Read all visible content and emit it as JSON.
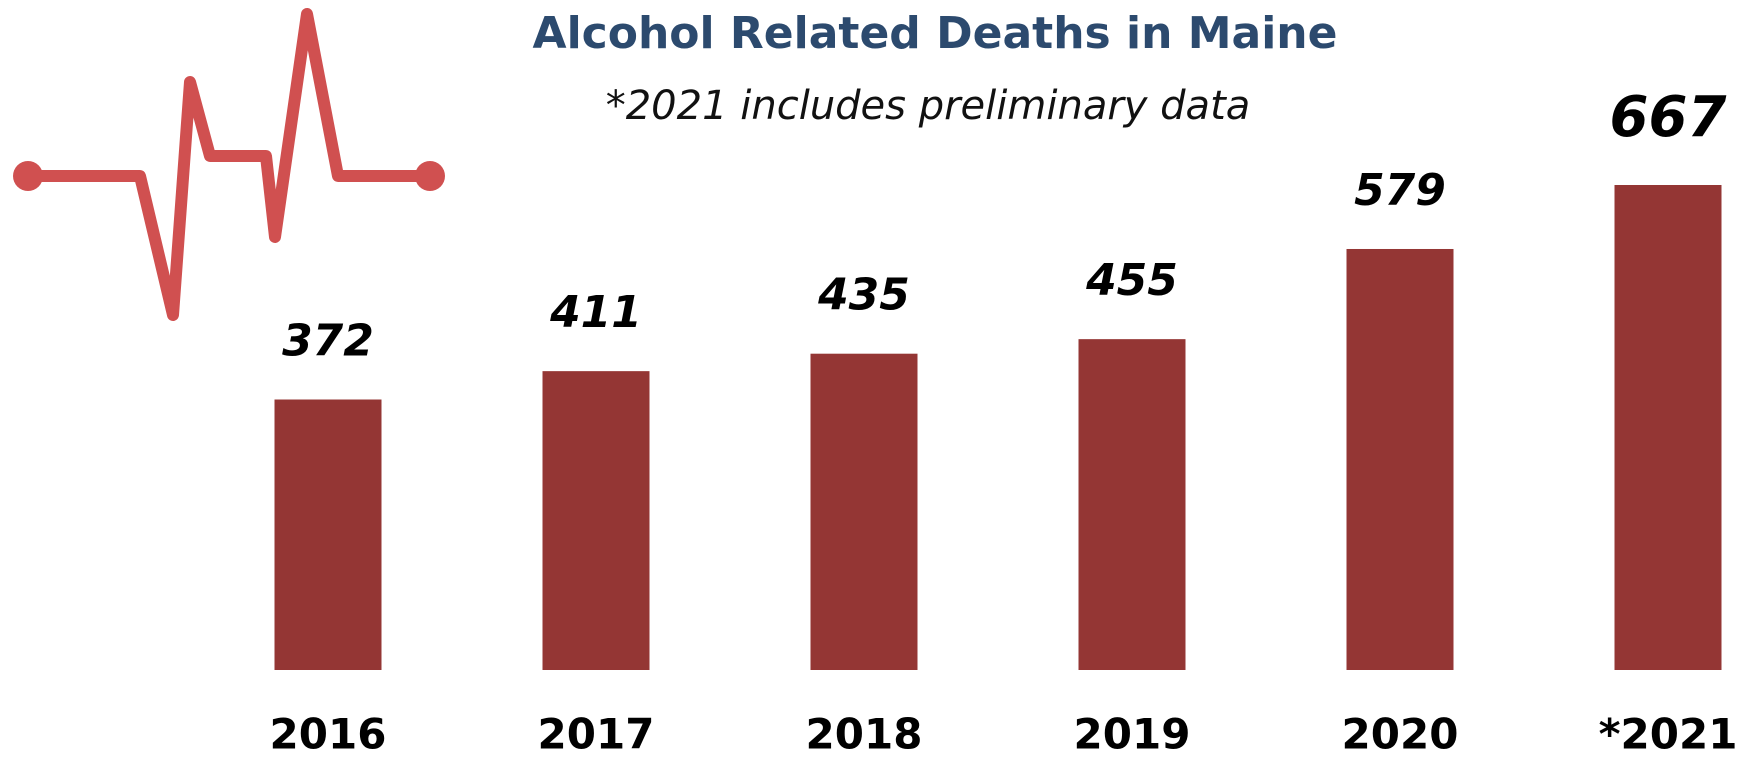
{
  "chart_data": {
    "type": "bar",
    "title": "Alcohol Related Deaths in Maine",
    "subtitle": "*2021 includes preliminary data",
    "categories": [
      "2016",
      "2017",
      "2018",
      "2019",
      "2020",
      "*2021"
    ],
    "values": [
      372,
      411,
      435,
      455,
      579,
      667
    ],
    "color": "#943634"
  }
}
